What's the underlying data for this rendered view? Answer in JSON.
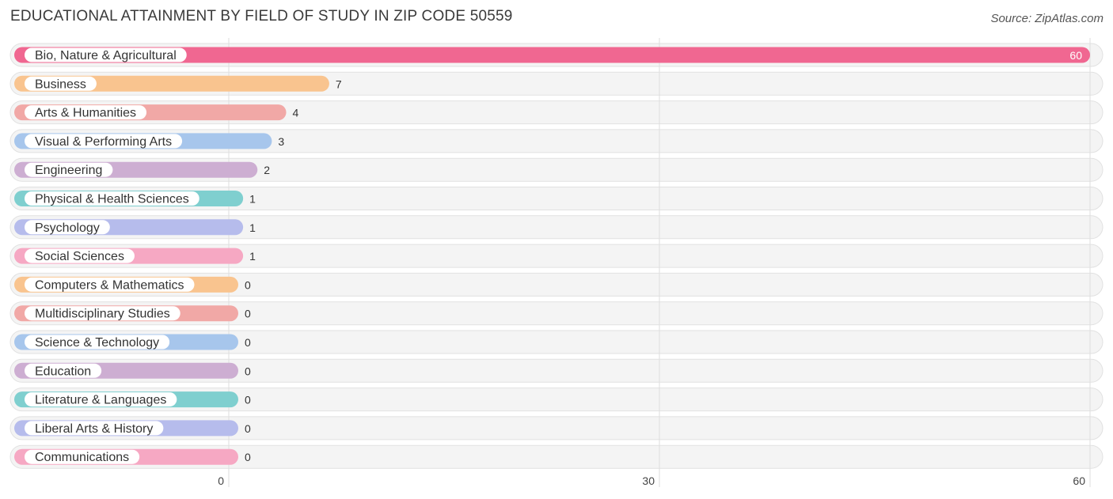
{
  "header": {
    "title": "EDUCATIONAL ATTAINMENT BY FIELD OF STUDY IN ZIP CODE 50559",
    "source": "Source: ZipAtlas.com"
  },
  "chart_data": {
    "type": "bar",
    "orientation": "horizontal",
    "title": "EDUCATIONAL ATTAINMENT BY FIELD OF STUDY IN ZIP CODE 50559",
    "categories": [
      "Bio, Nature & Agricultural",
      "Business",
      "Arts & Humanities",
      "Visual & Performing Arts",
      "Engineering",
      "Physical & Health Sciences",
      "Psychology",
      "Social Sciences",
      "Computers & Mathematics",
      "Multidisciplinary Studies",
      "Science & Technology",
      "Education",
      "Literature & Languages",
      "Liberal Arts & History",
      "Communications"
    ],
    "values": [
      60,
      7,
      4,
      3,
      2,
      1,
      1,
      1,
      0,
      0,
      0,
      0,
      0,
      0,
      0
    ],
    "colors": [
      "#f06791",
      "#f9c48f",
      "#f1a8a6",
      "#a7c6ec",
      "#cdaed2",
      "#7fcfcf",
      "#b6bcec",
      "#f6a8c3",
      "#f9c48f",
      "#f1a8a6",
      "#a7c6ec",
      "#cdaed2",
      "#7fcfcf",
      "#b6bcec",
      "#f6a8c3"
    ],
    "xlim": [
      0,
      60
    ],
    "xticks": [
      0,
      30,
      60
    ],
    "grid": true
  }
}
